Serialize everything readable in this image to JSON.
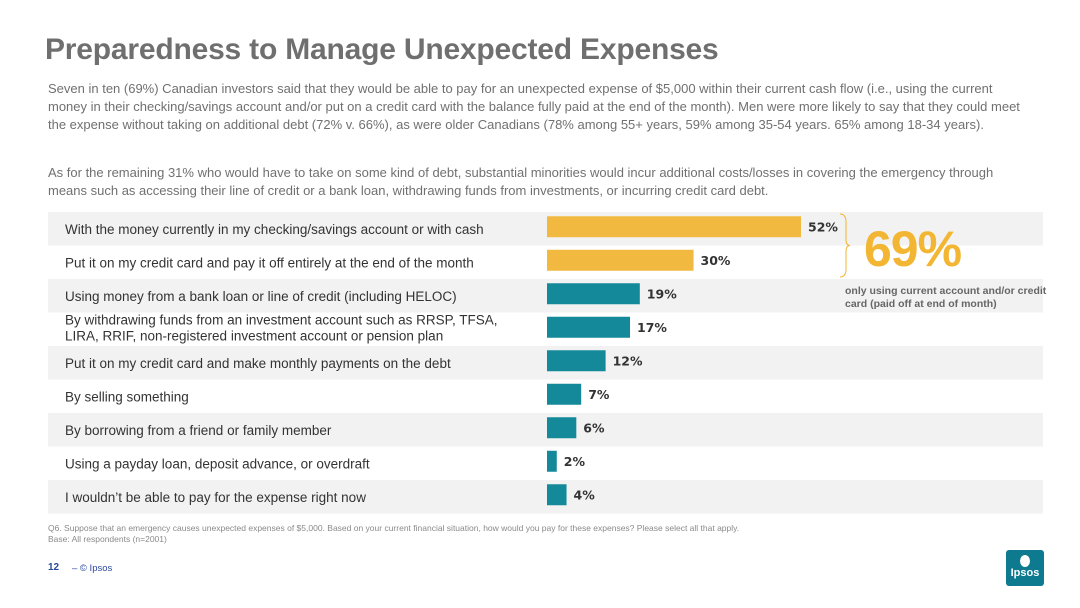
{
  "title": "Preparedness to Manage Unexpected Expenses",
  "paragraphs": [
    "Seven in ten (69%) Canadian investors said that they would be able to pay for an unexpected expense of $5,000 within their current cash flow (i.e., using the current money in their checking/savings account and/or put on a credit card with the balance fully paid at the end of the month). Men were more likely to say that they could meet the expense without taking on additional debt (72% v. 66%), as were older Canadians (78% among 55+ years, 59% among 35-54 years. 65% among 18-34 years).",
    "As for the remaining 31% who would have to take on some kind of debt, substantial minorities would incur additional costs/losses in covering the emergency through means such as accessing their line of credit or a bank loan, withdrawing funds from investments, or incurring credit card debt."
  ],
  "chart_data": {
    "type": "bar",
    "orientation": "horizontal",
    "categories": [
      [
        "With the money currently in my checking/savings account or with cash"
      ],
      [
        "Put it on my credit card and pay it off entirely at the end of the month"
      ],
      [
        "Using money from a bank loan or line of credit (including HELOC)"
      ],
      [
        "By withdrawing funds from an investment account such as RRSP, TFSA,",
        "LIRA, RRIF, non-registered investment account or pension plan"
      ],
      [
        "Put it on my credit card and make monthly payments on the debt"
      ],
      [
        "By selling something"
      ],
      [
        "By borrowing from a friend or family member"
      ],
      [
        "Using a payday loan, deposit advance, or overdraft"
      ],
      [
        "I wouldn’t be able to pay for the expense right now"
      ]
    ],
    "values": [
      52,
      30,
      19,
      17,
      12,
      7,
      6,
      2,
      4
    ],
    "value_labels": [
      "52%",
      "30%",
      "19%",
      "17%",
      "12%",
      "7%",
      "6%",
      "2%",
      "4%"
    ],
    "bar_colors": [
      "#f2b940",
      "#f2b940",
      "#14899a",
      "#14899a",
      "#14899a",
      "#14899a",
      "#14899a",
      "#14899a",
      "#14899a"
    ],
    "row_band_color": "#f2f2f2",
    "xlim": [
      0,
      52
    ],
    "grid": false,
    "annotation": {
      "value": "69%",
      "text": "only using current account and/or credit card (paid off at end of month)",
      "brackets_rows": [
        0,
        1
      ],
      "color": "#f2b632"
    }
  },
  "footnote": [
    "Q6. Suppose that an emergency causes unexpected expenses of $5,000. Based on your current financial situation, how would you pay for these expenses? Please select all that apply.",
    "Base: All respondents (n=2001)"
  ],
  "page_number": "12",
  "copyright": "–  © Ipsos",
  "logo_text": "Ipsos"
}
